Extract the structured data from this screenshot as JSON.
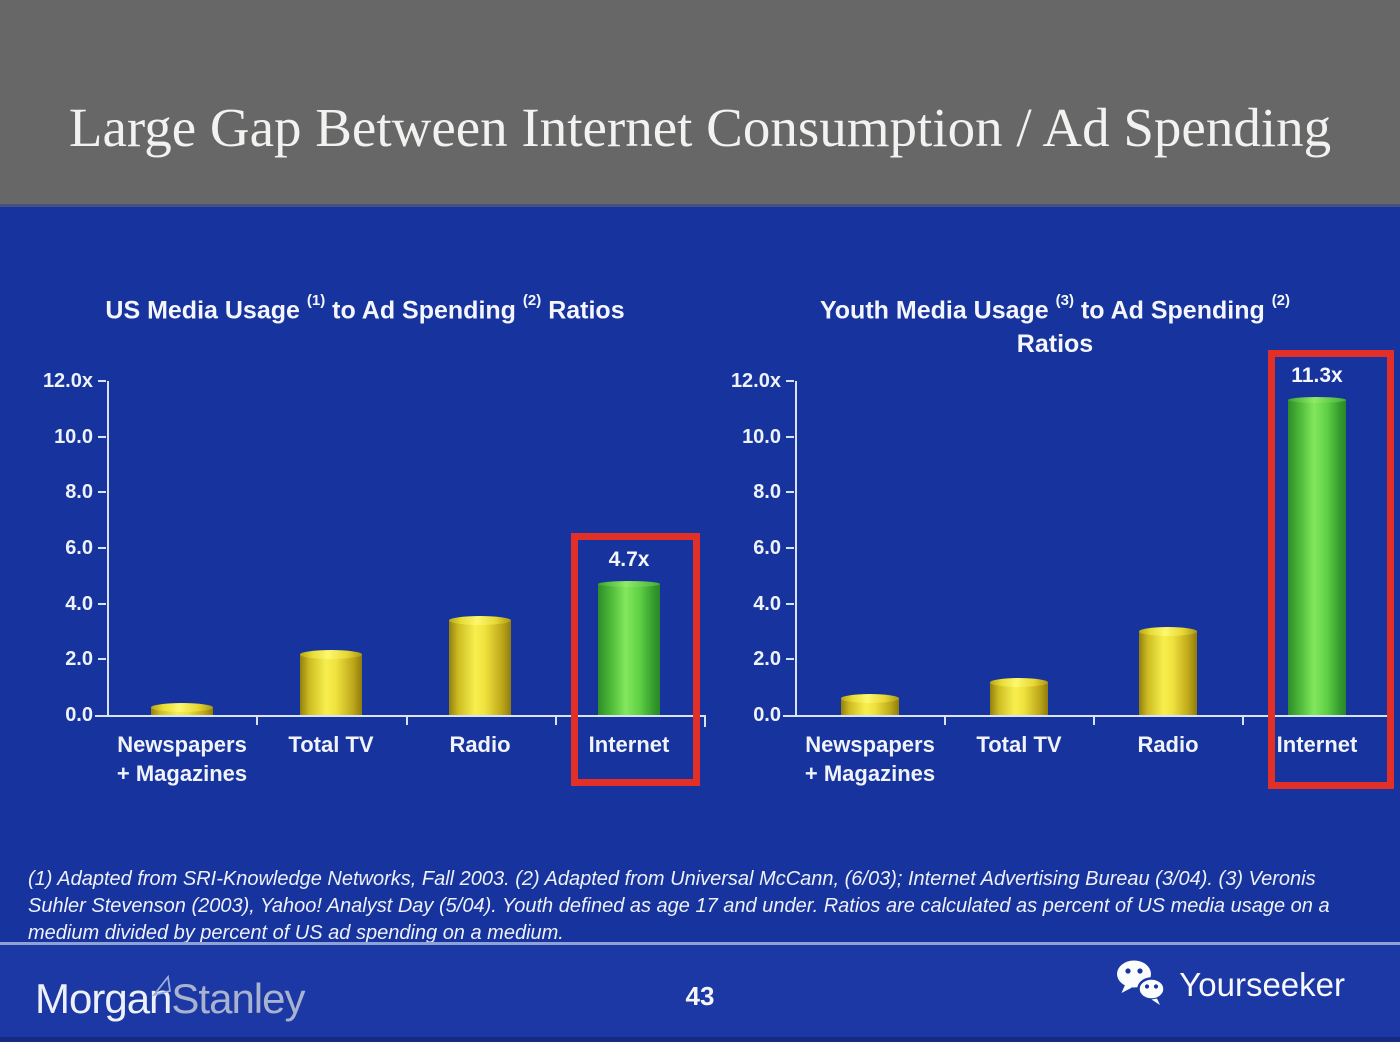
{
  "slide": {
    "title": "Large Gap Between Internet Consumption / Ad Spending",
    "footnote": "(1) Adapted from SRI-Knowledge Networks, Fall 2003.  (2) Adapted from Universal McCann, (6/03); Internet Advertising Bureau (3/04). (3) Veronis Suhler Stevenson (2003), Yahoo! Analyst Day (5/04).  Youth defined as age 17 and under.  Ratios are calculated as percent of US media usage on a medium divided by percent of US ad spending on a medium.",
    "page_number": "43"
  },
  "footer": {
    "logo_part1": "Morgan",
    "logo_part2": "Stanley",
    "watermark_text": "Yourseeker",
    "watermark_icon": "wechat-icon"
  },
  "colors": {
    "background_blue": "#17349E",
    "header_gray": "#666766",
    "highlight_red": "#E23028",
    "bar_yellow": "#F2E93E",
    "bar_green": "#5FD13F",
    "axis_line": "#D9E2F6"
  },
  "chart_data": [
    {
      "type": "bar",
      "title": "US Media Usage (1) to Ad Spending (2) Ratios",
      "title_segments": {
        "pre": "US Media Usage",
        "sup1": "(1)",
        "mid": "to Ad Spending",
        "sup2": "(2)",
        "post": "Ratios"
      },
      "categories": [
        "Newspapers + Magazines",
        "Total TV",
        "Radio",
        "Internet"
      ],
      "category_lines": [
        [
          "Newspapers",
          "+ Magazines"
        ],
        [
          "Total TV"
        ],
        [
          "Radio"
        ],
        [
          "Internet"
        ]
      ],
      "values": [
        0.3,
        2.2,
        3.4,
        4.7
      ],
      "bar_colors": [
        "yellow",
        "yellow",
        "yellow",
        "green"
      ],
      "ylabel_ticks": [
        "12.0x",
        "10.0",
        "8.0",
        "6.0",
        "4.0",
        "2.0",
        "0.0"
      ],
      "ylim": [
        0,
        12
      ],
      "grid": false,
      "highlight_index": 3,
      "highlight_category": "Internet",
      "highlight_value_label": "4.7x"
    },
    {
      "type": "bar",
      "title": "Youth Media Usage (3) to Ad Spending (2) Ratios",
      "title_segments": {
        "pre": "Youth Media Usage",
        "sup1": "(3)",
        "mid": "to Ad Spending",
        "sup2": "(2)",
        "post": "Ratios"
      },
      "categories": [
        "Newspapers + Magazines",
        "Total TV",
        "Radio",
        "Internet"
      ],
      "category_lines": [
        [
          "Newspapers",
          "+ Magazines"
        ],
        [
          "Total TV"
        ],
        [
          "Radio"
        ],
        [
          "Internet"
        ]
      ],
      "values": [
        0.6,
        1.2,
        3.0,
        11.3
      ],
      "bar_colors": [
        "yellow",
        "yellow",
        "yellow",
        "green"
      ],
      "ylabel_ticks": [
        "12.0x",
        "10.0",
        "8.0",
        "6.0",
        "4.0",
        "2.0",
        "0.0"
      ],
      "ylim": [
        0,
        12
      ],
      "grid": false,
      "highlight_index": 3,
      "highlight_category": "Internet",
      "highlight_value_label": "11.3x"
    }
  ]
}
